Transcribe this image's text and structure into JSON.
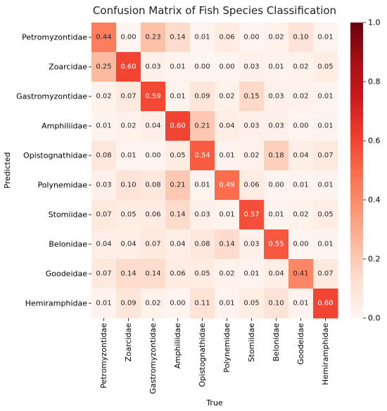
{
  "chart_data": {
    "type": "heatmap",
    "title": "Confusion Matrix of Fish Species Classification",
    "xlabel": "True",
    "ylabel": "Predicted",
    "x_categories": [
      "Petromyzontidae",
      "Zoarcidae",
      "Gastromyzontidae",
      "Amphiliidae",
      "Opistognathidae",
      "Polynemidae",
      "Stomiidae",
      "Belonidae",
      "Goodeidae",
      "Hemiramphidae"
    ],
    "y_categories": [
      "Petromyzontidae",
      "Zoarcidae",
      "Gastromyzontidae",
      "Amphiliidae",
      "Opistognathidae",
      "Polynemidae",
      "Stomiidae",
      "Belonidae",
      "Goodeidae",
      "Hemiramphidae"
    ],
    "values": [
      [
        0.44,
        0.0,
        0.23,
        0.14,
        0.01,
        0.06,
        0.0,
        0.02,
        0.1,
        0.01
      ],
      [
        0.25,
        0.6,
        0.03,
        0.01,
        0.0,
        0.0,
        0.03,
        0.01,
        0.02,
        0.05
      ],
      [
        0.02,
        0.07,
        0.59,
        0.01,
        0.09,
        0.02,
        0.15,
        0.03,
        0.02,
        0.01
      ],
      [
        0.01,
        0.02,
        0.04,
        0.6,
        0.21,
        0.04,
        0.03,
        0.03,
        0.0,
        0.01
      ],
      [
        0.08,
        0.01,
        0.0,
        0.05,
        0.54,
        0.01,
        0.02,
        0.18,
        0.04,
        0.07
      ],
      [
        0.03,
        0.1,
        0.08,
        0.21,
        0.01,
        0.49,
        0.06,
        0.0,
        0.01,
        0.01
      ],
      [
        0.07,
        0.05,
        0.06,
        0.14,
        0.03,
        0.01,
        0.57,
        0.01,
        0.02,
        0.05
      ],
      [
        0.04,
        0.04,
        0.07,
        0.04,
        0.08,
        0.14,
        0.03,
        0.55,
        0.0,
        0.01
      ],
      [
        0.07,
        0.14,
        0.14,
        0.06,
        0.05,
        0.02,
        0.01,
        0.04,
        0.41,
        0.07
      ],
      [
        0.01,
        0.09,
        0.02,
        0.0,
        0.11,
        0.01,
        0.05,
        0.1,
        0.01,
        0.6
      ]
    ],
    "value_format": "2 decimals",
    "colormap": "Reds",
    "colorbar": {
      "range": [
        0.0,
        1.0
      ],
      "ticks": [
        "0.0",
        "0.2",
        "0.4",
        "0.6",
        "0.8",
        "1.0"
      ]
    },
    "grid": false
  }
}
